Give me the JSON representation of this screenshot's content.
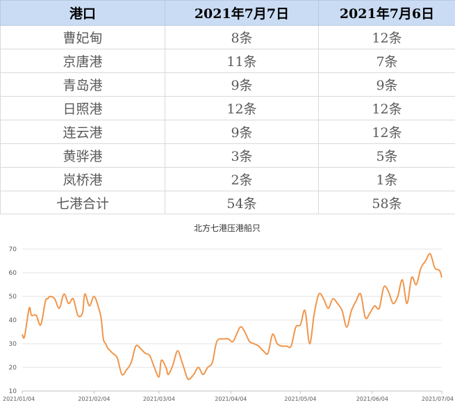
{
  "table": {
    "headers": [
      "港口",
      "2021年7月7日",
      "2021年7月6日"
    ],
    "rows": [
      [
        "曹妃甸",
        "8条",
        "12条"
      ],
      [
        "京唐港",
        "11条",
        "7条"
      ],
      [
        "青岛港",
        "9条",
        "9条"
      ],
      [
        "日照港",
        "12条",
        "12条"
      ],
      [
        "连云港",
        "9条",
        "12条"
      ],
      [
        "黄骅港",
        "3条",
        "5条"
      ],
      [
        "岚桥港",
        "2条",
        "1条"
      ],
      [
        "七港合计",
        "54条",
        "58条"
      ]
    ]
  },
  "chart_data": {
    "type": "line",
    "title": "北方七港压港船只",
    "ylim": [
      10,
      70
    ],
    "yticks": [
      10,
      20,
      30,
      40,
      50,
      60,
      70
    ],
    "xticks": [
      "2021/01/04",
      "2021/02/04",
      "2021/03/04",
      "2021/04/04",
      "2021/05/04",
      "2021/06/04",
      "2021/07/04"
    ],
    "xlim": [
      "2021-01-04",
      "2021-07-04"
    ],
    "grid": true,
    "line_color": "#f0954a",
    "series": [
      {
        "x": [
          "2021-01-04",
          "2021-01-05",
          "2021-01-07",
          "2021-01-08",
          "2021-01-10",
          "2021-01-12",
          "2021-01-14",
          "2021-01-15",
          "2021-01-16",
          "2021-01-18",
          "2021-01-20",
          "2021-01-22",
          "2021-01-24",
          "2021-01-26",
          "2021-01-28",
          "2021-01-30",
          "2021-01-31",
          "2021-02-02",
          "2021-02-04",
          "2021-02-06",
          "2021-02-07",
          "2021-02-08",
          "2021-02-09",
          "2021-02-10",
          "2021-02-12",
          "2021-02-14",
          "2021-02-16",
          "2021-02-18",
          "2021-02-20",
          "2021-02-22",
          "2021-02-24",
          "2021-02-26",
          "2021-02-28",
          "2021-03-02",
          "2021-03-04",
          "2021-03-05",
          "2021-03-07",
          "2021-03-08",
          "2021-03-10",
          "2021-03-12",
          "2021-03-14",
          "2021-03-16",
          "2021-03-17",
          "2021-03-19",
          "2021-03-21",
          "2021-03-23",
          "2021-03-25",
          "2021-03-27",
          "2021-03-29",
          "2021-04-01",
          "2021-04-03",
          "2021-04-05",
          "2021-04-08",
          "2021-04-10",
          "2021-04-12",
          "2021-04-14",
          "2021-04-16",
          "2021-04-18",
          "2021-04-20",
          "2021-04-22",
          "2021-04-24",
          "2021-04-26",
          "2021-04-28",
          "2021-04-30",
          "2021-05-02",
          "2021-05-04",
          "2021-05-06",
          "2021-05-08",
          "2021-05-10",
          "2021-05-12",
          "2021-05-14",
          "2021-05-16",
          "2021-05-18",
          "2021-05-20",
          "2021-05-22",
          "2021-05-24",
          "2021-05-26",
          "2021-05-28",
          "2021-05-30",
          "2021-06-01",
          "2021-06-03",
          "2021-06-05",
          "2021-06-07",
          "2021-06-09",
          "2021-06-11",
          "2021-06-13",
          "2021-06-15",
          "2021-06-17",
          "2021-06-19",
          "2021-06-21",
          "2021-06-23",
          "2021-06-25",
          "2021-06-27",
          "2021-06-29",
          "2021-07-01",
          "2021-07-03",
          "2021-07-04"
        ],
        "values": [
          34,
          33,
          45,
          42,
          42,
          38,
          48,
          49,
          50,
          49,
          45,
          51,
          47,
          49,
          42,
          43,
          51,
          46,
          50,
          45,
          41,
          32,
          30,
          28,
          26,
          24,
          17,
          19,
          22,
          29,
          28,
          26,
          25,
          20,
          16,
          23,
          20,
          17,
          21,
          27,
          22,
          16,
          15,
          17,
          20,
          17,
          20,
          22,
          31,
          32,
          32,
          31,
          37,
          35,
          31,
          30,
          29,
          27,
          26,
          34,
          30,
          29,
          29,
          29,
          37,
          38,
          44,
          30,
          43,
          51,
          49,
          45,
          49,
          47,
          44,
          37,
          44,
          48,
          51,
          41,
          43,
          46,
          45,
          54,
          52,
          47,
          50,
          57,
          47,
          58,
          55,
          62,
          65,
          68,
          62,
          61,
          58
        ]
      }
    ]
  }
}
